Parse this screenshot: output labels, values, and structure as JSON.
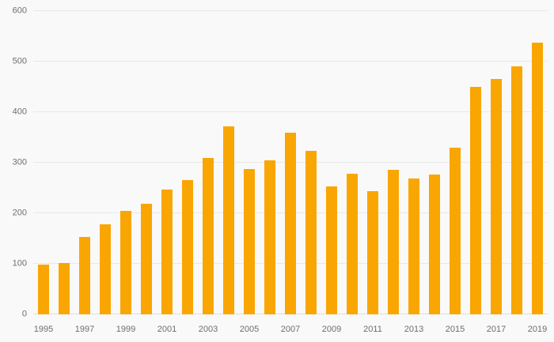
{
  "chart_data": {
    "type": "bar",
    "title": "",
    "xlabel": "",
    "ylabel": "",
    "categories": [
      "1995",
      "1996",
      "1997",
      "1998",
      "1999",
      "2000",
      "2001",
      "2002",
      "2003",
      "2004",
      "2005",
      "2006",
      "2007",
      "2008",
      "2009",
      "2010",
      "2011",
      "2012",
      "2013",
      "2014",
      "2015",
      "2016",
      "2017",
      "2018",
      "2019"
    ],
    "values": [
      98,
      102,
      153,
      178,
      205,
      218,
      247,
      265,
      310,
      372,
      287,
      305,
      360,
      324,
      253,
      278,
      243,
      286,
      268,
      276,
      330,
      450,
      465,
      490,
      537
    ],
    "ylim": [
      0,
      600
    ],
    "y_ticks": [
      0,
      100,
      200,
      300,
      400,
      500,
      600
    ],
    "x_tick_labels": [
      "1995",
      "1997",
      "1999",
      "2001",
      "2003",
      "2005",
      "2007",
      "2009",
      "2011",
      "2013",
      "2015",
      "2017",
      "2019"
    ],
    "grid": true,
    "legend": "none",
    "bar_color": "#f9a602",
    "background_color": "#f9f9f9",
    "gridline_color": "#e8e8e8",
    "axis_label_color": "#6e6e6e"
  }
}
